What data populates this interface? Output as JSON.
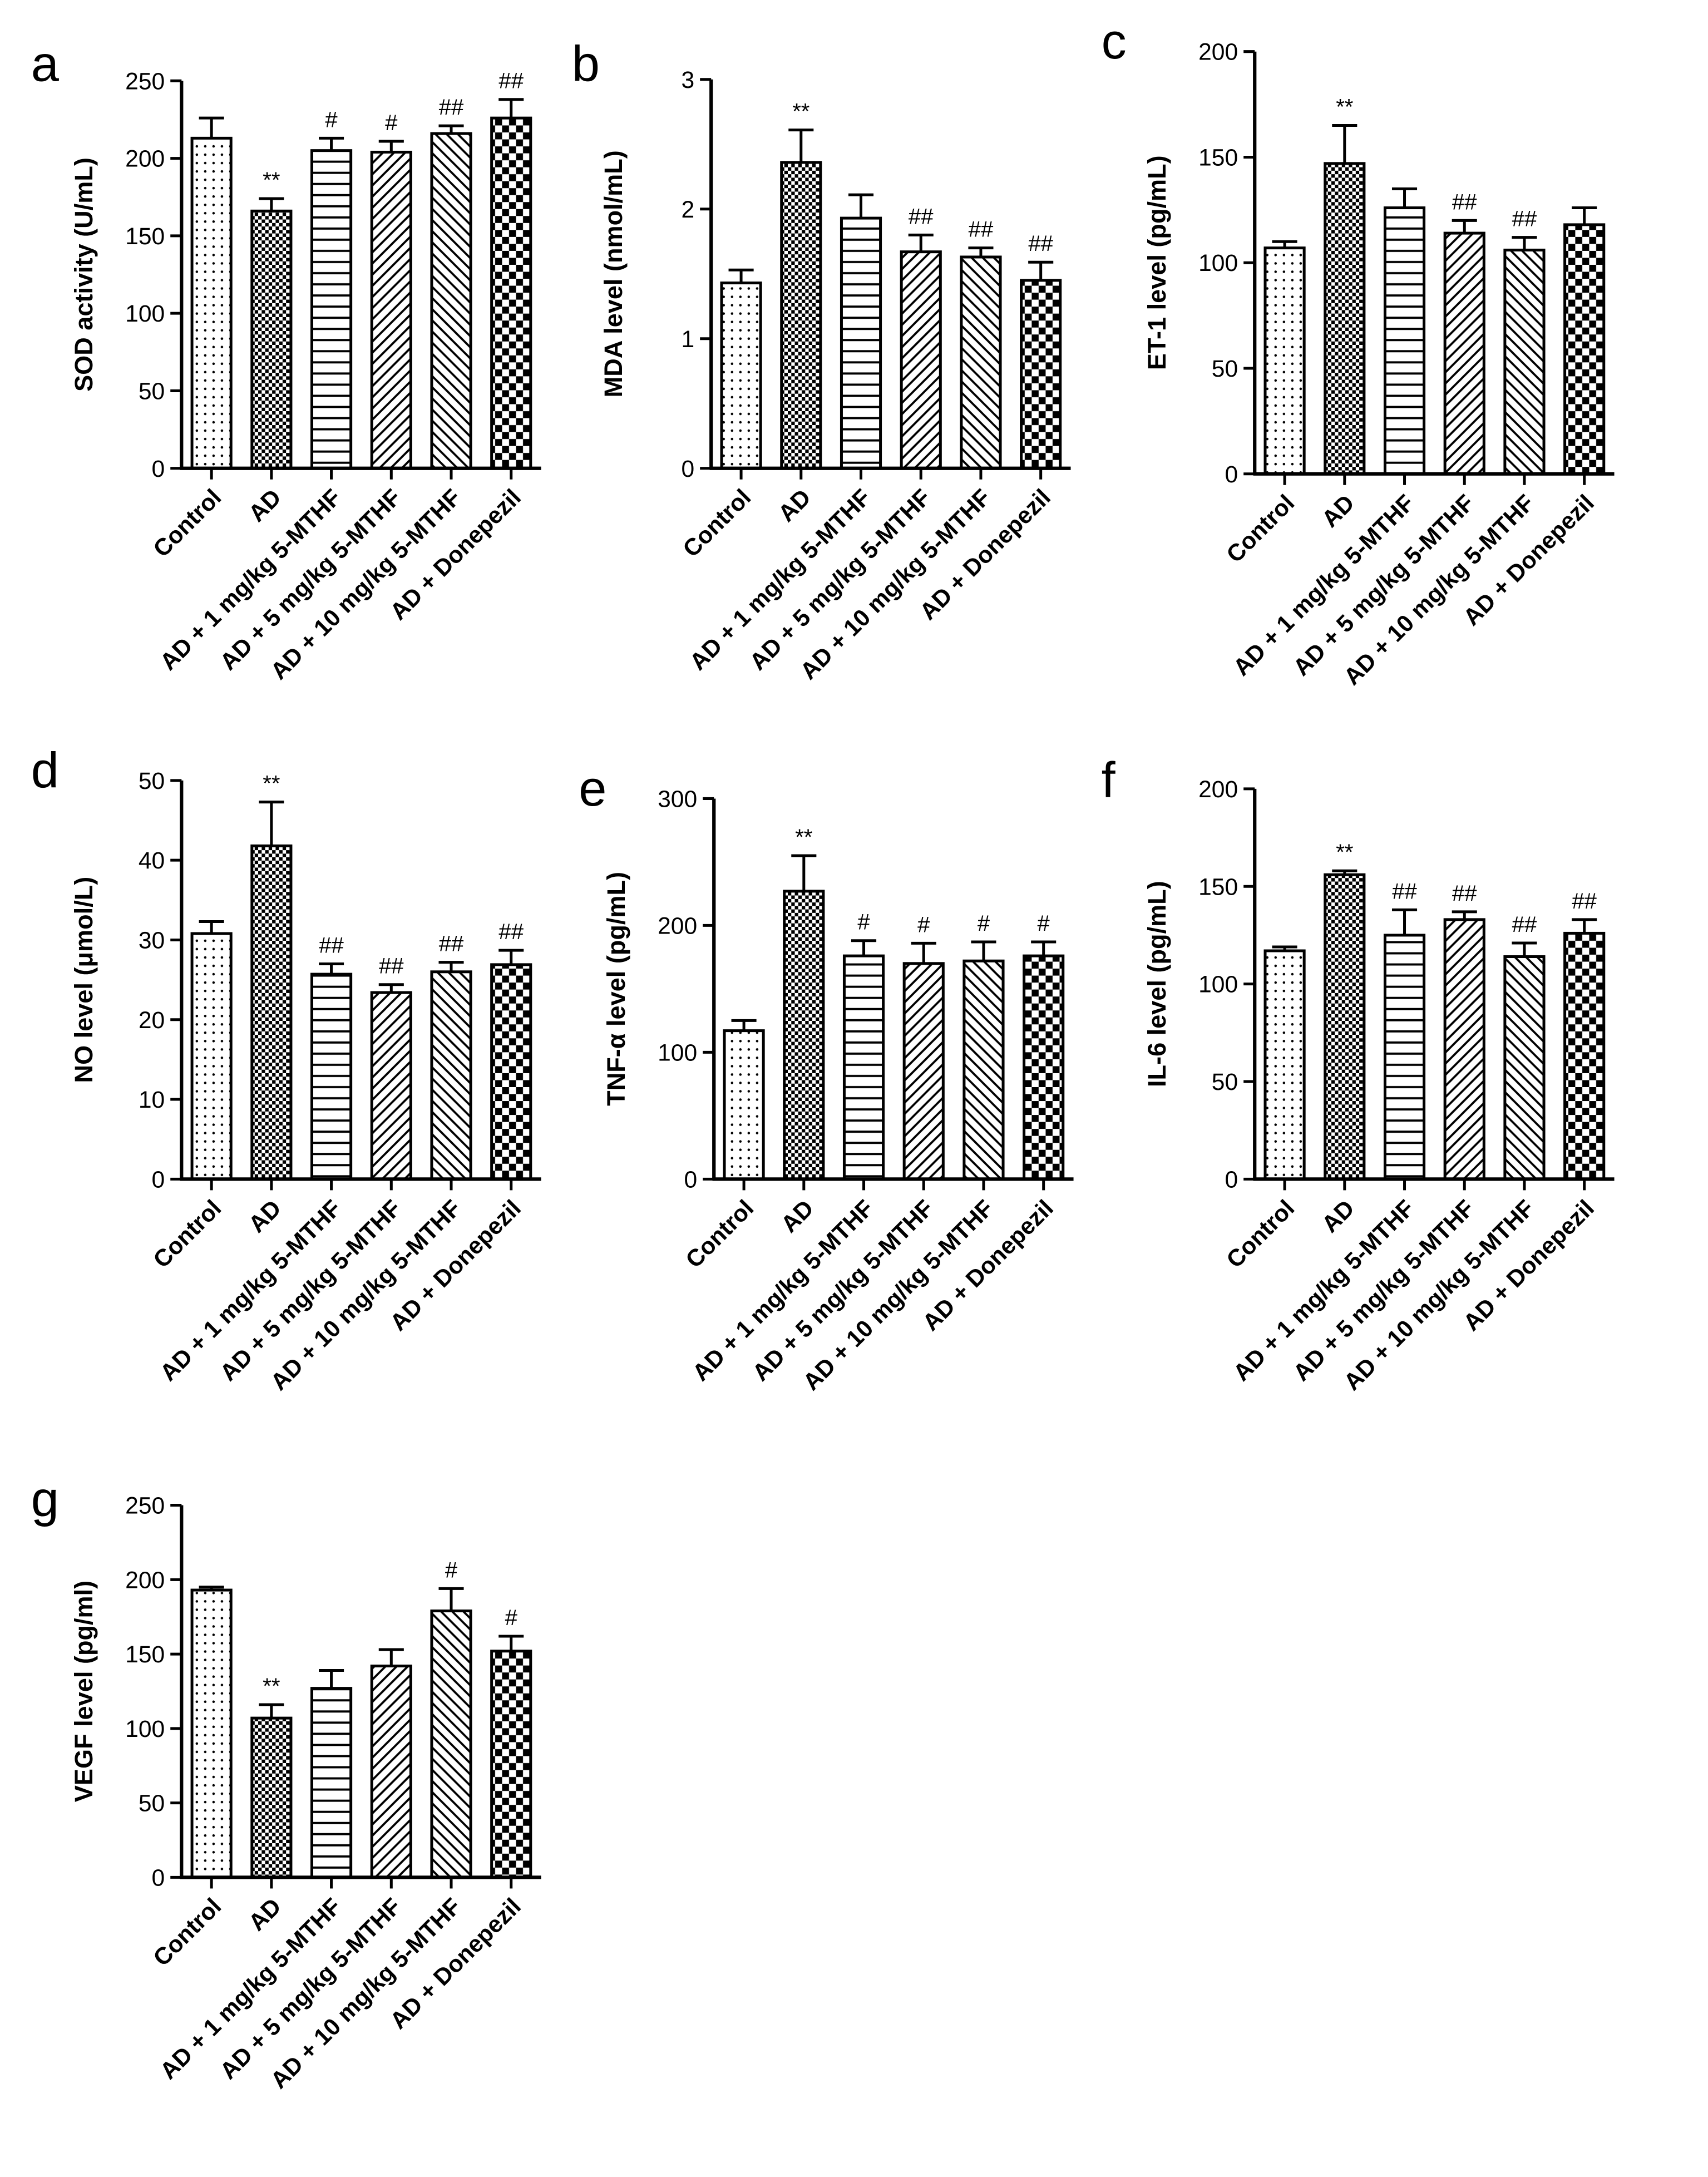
{
  "chart_data": [
    {
      "type": "bar",
      "panel_label": "a",
      "y_label": "SOD activity (U/mL)",
      "categories": [
        "Control",
        "AD",
        "AD + 1 mg/kg 5-MTHF",
        "AD + 5 mg/kg 5-MTHF",
        "AD + 10 mg/kg 5-MTHF",
        "AD + Donepezil"
      ],
      "values": [
        213,
        166,
        205,
        204,
        216,
        226
      ],
      "errors": [
        13,
        8,
        8,
        7,
        5,
        12
      ],
      "annotations": [
        null,
        "**",
        "#",
        "#",
        "##",
        "##"
      ],
      "ylim": [
        0,
        250
      ],
      "yticks": [
        0,
        50,
        100,
        150,
        200,
        250
      ]
    },
    {
      "type": "bar",
      "panel_label": "b",
      "y_label": "MDA level (nmol/mL)",
      "categories": [
        "Control",
        "AD",
        "AD + 1 mg/kg 5-MTHF",
        "AD + 5 mg/kg 5-MTHF",
        "AD + 10 mg/kg 5-MTHF",
        "AD + Donepezil"
      ],
      "values": [
        1.43,
        2.36,
        1.93,
        1.67,
        1.63,
        1.45
      ],
      "errors": [
        0.1,
        0.25,
        0.18,
        0.13,
        0.07,
        0.14
      ],
      "annotations": [
        null,
        "**",
        null,
        "##",
        "##",
        "##"
      ],
      "ylim": [
        0,
        3
      ],
      "yticks": [
        0,
        1,
        2,
        3
      ]
    },
    {
      "type": "bar",
      "panel_label": "c",
      "y_label": "ET-1 level (pg/mL)",
      "categories": [
        "Control",
        "AD",
        "AD + 1 mg/kg 5-MTHF",
        "AD + 5 mg/kg 5-MTHF",
        "AD + 10 mg/kg 5-MTHF",
        "AD + Donepezil"
      ],
      "values": [
        107,
        147,
        126,
        114,
        106,
        118
      ],
      "errors": [
        3,
        18,
        9,
        6,
        6,
        8
      ],
      "annotations": [
        null,
        "**",
        null,
        "##",
        "##",
        null
      ],
      "ylim": [
        0,
        200
      ],
      "yticks": [
        0,
        50,
        100,
        150,
        200
      ]
    },
    {
      "type": "bar",
      "panel_label": "d",
      "y_label": "NO level (μmol/L)",
      "categories": [
        "Control",
        "AD",
        "AD + 1 mg/kg 5-MTHF",
        "AD + 5 mg/kg 5-MTHF",
        "AD + 10 mg/kg 5-MTHF",
        "AD + Donepezil"
      ],
      "values": [
        30.8,
        41.8,
        25.7,
        23.4,
        26,
        26.9
      ],
      "errors": [
        1.5,
        5.5,
        1.3,
        1,
        1.2,
        1.8
      ],
      "annotations": [
        null,
        "**",
        "##",
        "##",
        "##",
        "##"
      ],
      "ylim": [
        0,
        50
      ],
      "yticks": [
        0,
        10,
        20,
        30,
        40,
        50
      ]
    },
    {
      "type": "bar",
      "panel_label": "e",
      "y_label": "TNF-α level (pg/mL)",
      "categories": [
        "Control",
        "AD",
        "AD + 1 mg/kg 5-MTHF",
        "AD + 5 mg/kg 5-MTHF",
        "AD + 10 mg/kg 5-MTHF",
        "AD + Donepezil"
      ],
      "values": [
        117,
        227,
        176,
        170,
        172,
        176
      ],
      "errors": [
        8,
        28,
        12,
        16,
        15,
        11
      ],
      "annotations": [
        null,
        "**",
        "#",
        "#",
        "#",
        "#"
      ],
      "ylim": [
        0,
        300
      ],
      "yticks": [
        0,
        100,
        200,
        300
      ]
    },
    {
      "type": "bar",
      "panel_label": "f",
      "y_label": "IL-6 level (pg/mL)",
      "categories": [
        "Control",
        "AD",
        "AD + 1 mg/kg 5-MTHF",
        "AD + 5 mg/kg 5-MTHF",
        "AD + 10 mg/kg 5-MTHF",
        "AD + Donepezil"
      ],
      "values": [
        117,
        156,
        125,
        133,
        114,
        126
      ],
      "errors": [
        2,
        2,
        13,
        4,
        7,
        7
      ],
      "annotations": [
        null,
        "**",
        "##",
        "##",
        "##",
        "##"
      ],
      "ylim": [
        0,
        200
      ],
      "yticks": [
        0,
        50,
        100,
        150,
        200
      ]
    },
    {
      "type": "bar",
      "panel_label": "g",
      "y_label": "VEGF level (pg/ml)",
      "categories": [
        "Control",
        "AD",
        "AD + 1 mg/kg 5-MTHF",
        "AD + 5 mg/kg 5-MTHF",
        "AD + 10 mg/kg 5-MTHF",
        "AD + Donepezil"
      ],
      "values": [
        193,
        107,
        127,
        142,
        179,
        152
      ],
      "errors": [
        2,
        9,
        12,
        11,
        15,
        10
      ],
      "annotations": [
        null,
        "**",
        null,
        null,
        "#",
        "#"
      ],
      "ylim": [
        0,
        250
      ],
      "yticks": [
        0,
        50,
        100,
        150,
        200,
        250
      ]
    }
  ]
}
